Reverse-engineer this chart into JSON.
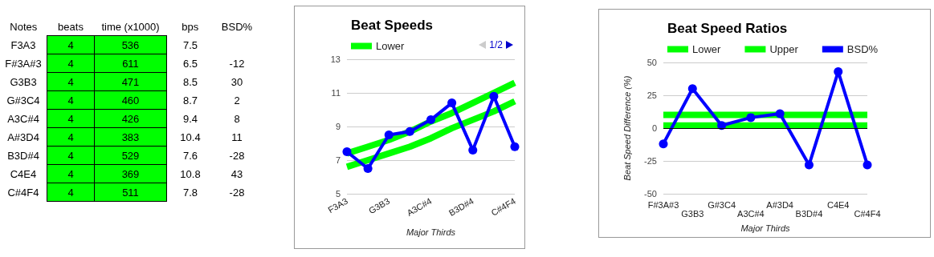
{
  "chart_data": [
    {
      "type": "other",
      "categories": [
        "Notes",
        "beats",
        "time (x1000)",
        "bps",
        "BSD%"
      ],
      "colors": [
        null,
        "#00ff00",
        "#00ff00",
        null,
        null
      ],
      "annotations": [
        "F3A3",
        "4",
        "536",
        "7.5",
        null,
        "F#3A#3",
        "4",
        "611",
        "6.5",
        "-12",
        "G3B3",
        "4",
        "471",
        "8.5",
        "30",
        "G#3C4",
        "4",
        "460",
        "8.7",
        "2",
        "A3C#4",
        "4",
        "426",
        "9.4",
        "8",
        "A#3D4",
        "4",
        "383",
        "10.4",
        "11",
        "B3D#4",
        "4",
        "529",
        "7.6",
        "-28",
        "C4E4",
        "4",
        "369",
        "10.8",
        "43",
        "C#4F4",
        "4",
        "511",
        "7.8",
        "-28"
      ]
    },
    {
      "type": "line",
      "title": "Beat Speeds",
      "xlabel": "Major Thirds",
      "categories": [
        "F3A3",
        null,
        "G3B3",
        null,
        "A3C#4",
        null,
        "B3D#4",
        null,
        "C#4F4"
      ],
      "series": [
        {
          "name": "Lower",
          "color": "#00ff00",
          "values": [
            6.6,
            7.0,
            7.4,
            7.8,
            8.3,
            8.9,
            9.4,
            9.9,
            10.5
          ]
        },
        {
          "color": "#00ff00",
          "values": [
            7.4,
            7.8,
            8.2,
            8.7,
            9.3,
            9.8,
            10.4,
            11.0,
            11.6
          ]
        },
        {
          "color": "#0000ff",
          "marker": "circle",
          "values": [
            7.5,
            6.5,
            8.5,
            8.7,
            9.4,
            10.4,
            7.6,
            10.8,
            7.8
          ]
        }
      ],
      "ylim": [
        5,
        13
      ],
      "yticks": [
        5,
        7,
        9,
        11,
        13
      ],
      "grid": "y",
      "legend": "top left",
      "annotations": [
        "1/2"
      ]
    },
    {
      "type": "line",
      "title": "Beat Speed Ratios",
      "xlabel": "Major Thirds",
      "ylabel": "Beat Speed Difference (%)",
      "categories": [
        "F#3A#3",
        "G3B3",
        "G#3C4",
        "A3C#4",
        "A#3D4",
        "B3D#4",
        "C4E4",
        "C#4F4"
      ],
      "series": [
        {
          "name": "Lower",
          "color": "#00ff00",
          "values": [
            2,
            2,
            2,
            2,
            2,
            2,
            2,
            2
          ]
        },
        {
          "name": "Upper",
          "color": "#00ff00",
          "values": [
            10,
            10,
            10,
            10,
            10,
            10,
            10,
            10
          ]
        },
        {
          "name": "BSD%",
          "color": "#0000ff",
          "marker": "circle",
          "values": [
            -12,
            30,
            2,
            8,
            11,
            -28,
            43,
            -28
          ]
        }
      ],
      "ylim": [
        -50,
        50
      ],
      "yticks": [
        -50,
        -25,
        0,
        25,
        50
      ],
      "grid": "y",
      "legend": "top left",
      "ref_lines": [
        {
          "axis": "y",
          "value": 0,
          "color": "#000000"
        }
      ]
    }
  ]
}
